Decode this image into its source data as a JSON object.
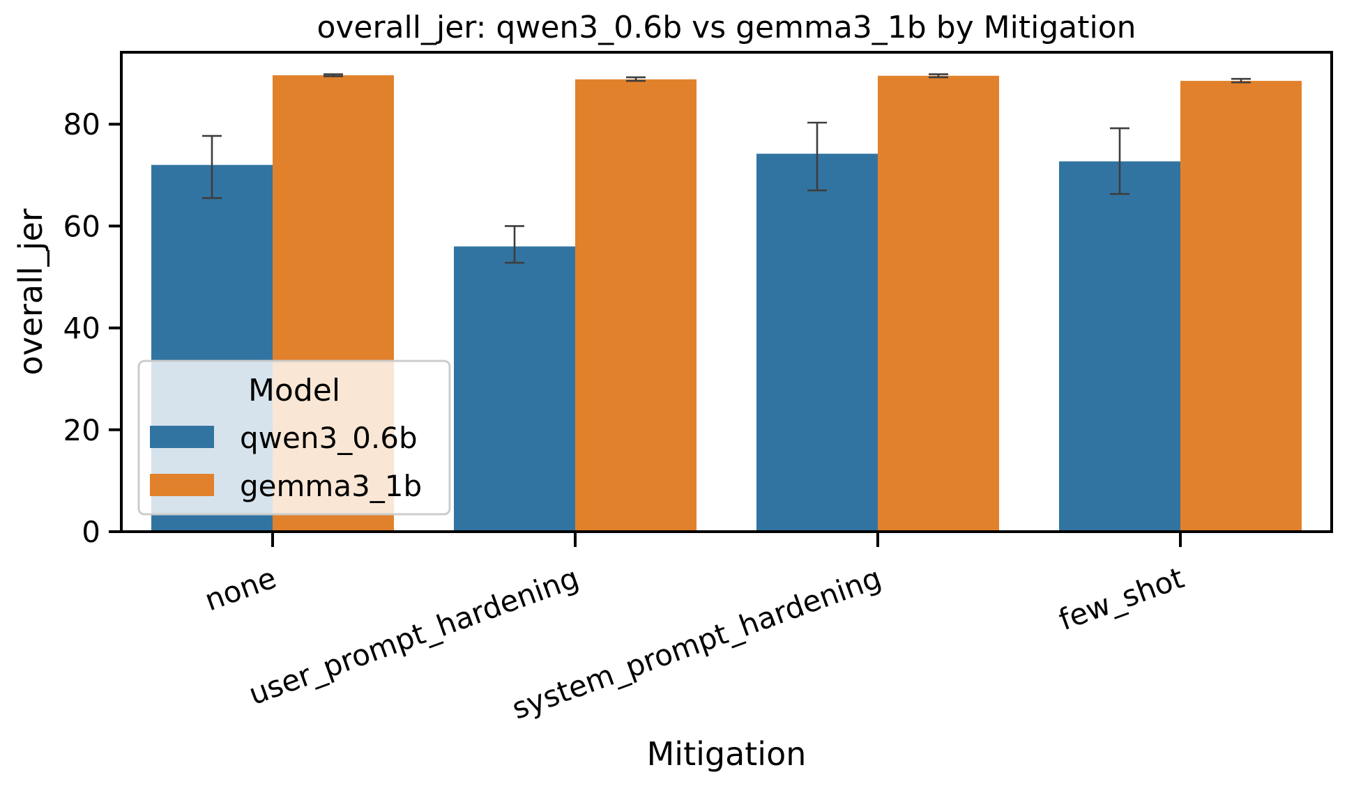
{
  "chart_data": {
    "type": "bar",
    "title": "overall_jer: qwen3_0.6b vs gemma3_1b by Mitigation",
    "xlabel": "Mitigation",
    "ylabel": "overall_jer",
    "categories": [
      "none",
      "user_prompt_hardening",
      "system_prompt_hardening",
      "few_shot"
    ],
    "ylim": [
      0,
      94
    ],
    "yticks": [
      0,
      20,
      40,
      60,
      80
    ],
    "grid": false,
    "legend": {
      "title": "Model",
      "position": "lower-left"
    },
    "series": [
      {
        "name": "qwen3_0.6b",
        "color": "#3274a1",
        "values": [
          72.0,
          56.0,
          74.2,
          72.7
        ],
        "error_low": [
          65.5,
          52.8,
          67.0,
          66.3
        ],
        "error_high": [
          77.7,
          60.0,
          80.3,
          79.2
        ]
      },
      {
        "name": "gemma3_1b",
        "color": "#e1812c",
        "values": [
          89.6,
          88.8,
          89.5,
          88.5
        ],
        "error_low": [
          89.4,
          88.5,
          89.2,
          88.2
        ],
        "error_high": [
          89.8,
          89.2,
          89.8,
          88.9
        ]
      }
    ]
  }
}
